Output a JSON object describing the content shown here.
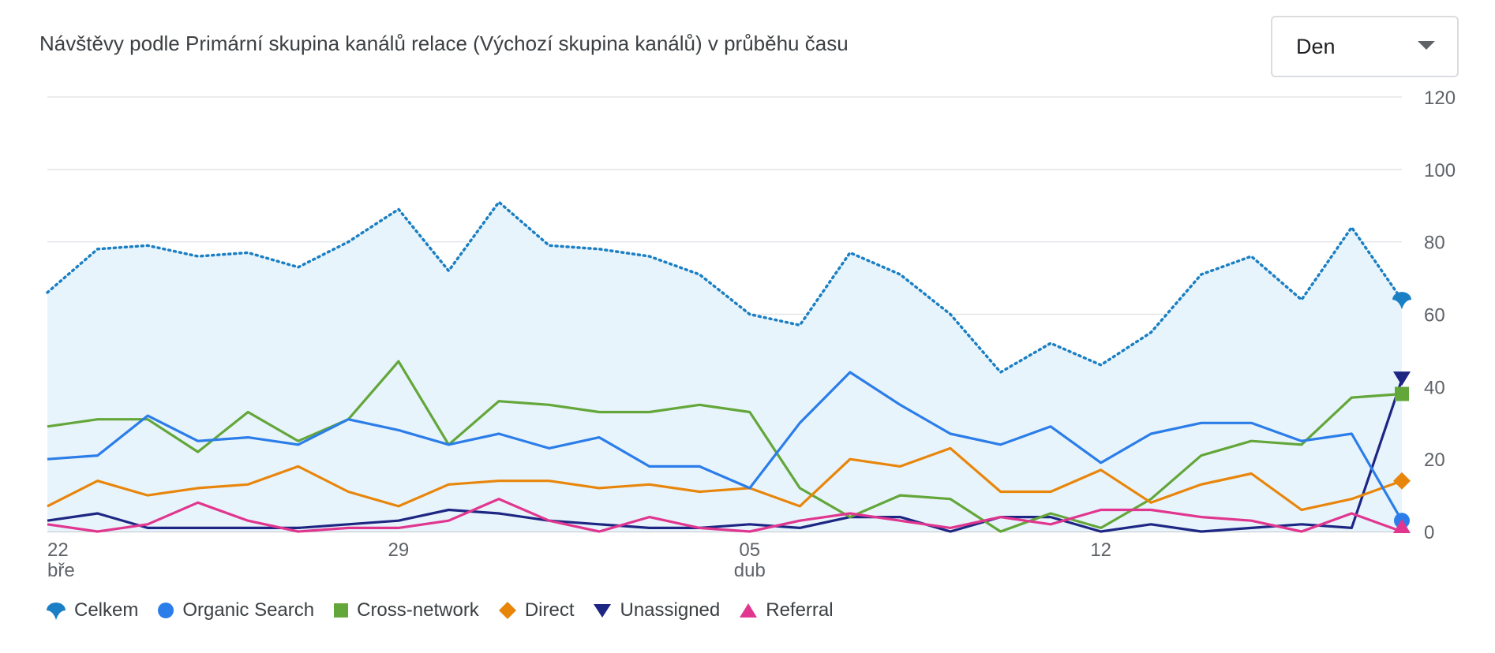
{
  "header": {
    "title": "Návštěvy podle Primární skupina kanálů relace (Výchozí skupina kanálů) v průběhu času",
    "granularity_selected": "Den"
  },
  "colors": {
    "total": "#1a7fc4",
    "total_fill": "#e8f4fb",
    "organic_search": "#2b7de9",
    "cross_network": "#63a63a",
    "direct": "#e8860c",
    "unassigned": "#1d2683",
    "referral": "#e0368f",
    "grid": "#e3e5e8",
    "axis_text": "#5f6368"
  },
  "chart_data": {
    "type": "line",
    "title": "Návštěvy podle Primární skupina kanálů relace (Výchozí skupina kanálů) v průběhu času",
    "x_tick_labels": [
      {
        "index": 0,
        "day": "22",
        "month": "bře"
      },
      {
        "index": 7,
        "day": "29",
        "month": ""
      },
      {
        "index": 14,
        "day": "05",
        "month": "dub"
      },
      {
        "index": 21,
        "day": "12",
        "month": ""
      }
    ],
    "y_ticks": [
      0,
      20,
      40,
      60,
      80,
      100,
      120
    ],
    "ylim": [
      0,
      120
    ],
    "grid": true,
    "legend_position": "bottom-left",
    "point_count": 28,
    "series": [
      {
        "name": "Celkem",
        "key": "total",
        "style": "dotted-area",
        "marker": "pin",
        "values": [
          66,
          78,
          79,
          76,
          77,
          73,
          80,
          89,
          72,
          91,
          79,
          78,
          76,
          71,
          60,
          57,
          77,
          71,
          60,
          44,
          52,
          46,
          55,
          71,
          76,
          64,
          84,
          64
        ]
      },
      {
        "name": "Organic Search",
        "key": "organic_search",
        "style": "line",
        "marker": "circle",
        "values": [
          20,
          21,
          32,
          25,
          26,
          24,
          31,
          28,
          24,
          27,
          23,
          26,
          18,
          18,
          12,
          30,
          44,
          35,
          27,
          24,
          29,
          19,
          27,
          30,
          30,
          25,
          27,
          3
        ]
      },
      {
        "name": "Cross-network",
        "key": "cross_network",
        "style": "line",
        "marker": "square",
        "values": [
          29,
          31,
          31,
          22,
          33,
          25,
          31,
          47,
          24,
          36,
          35,
          33,
          33,
          35,
          33,
          12,
          4,
          10,
          9,
          0,
          5,
          1,
          9,
          21,
          25,
          24,
          37,
          38
        ]
      },
      {
        "name": "Direct",
        "key": "direct",
        "style": "line",
        "marker": "diamond",
        "values": [
          7,
          14,
          10,
          12,
          13,
          18,
          11,
          7,
          13,
          14,
          14,
          12,
          13,
          11,
          12,
          7,
          20,
          18,
          23,
          11,
          11,
          17,
          8,
          13,
          16,
          6,
          9,
          14
        ]
      },
      {
        "name": "Unassigned",
        "key": "unassigned",
        "style": "line",
        "marker": "triangle-down",
        "values": [
          3,
          5,
          1,
          1,
          1,
          1,
          2,
          3,
          6,
          5,
          3,
          2,
          1,
          1,
          2,
          1,
          4,
          4,
          0,
          4,
          4,
          0,
          2,
          0,
          1,
          2,
          1,
          42
        ]
      },
      {
        "name": "Referral",
        "key": "referral",
        "style": "line",
        "marker": "triangle-up",
        "values": [
          2,
          0,
          2,
          8,
          3,
          0,
          1,
          1,
          3,
          9,
          3,
          0,
          4,
          1,
          0,
          3,
          5,
          3,
          1,
          4,
          2,
          6,
          6,
          4,
          3,
          0,
          5,
          0
        ]
      }
    ]
  }
}
